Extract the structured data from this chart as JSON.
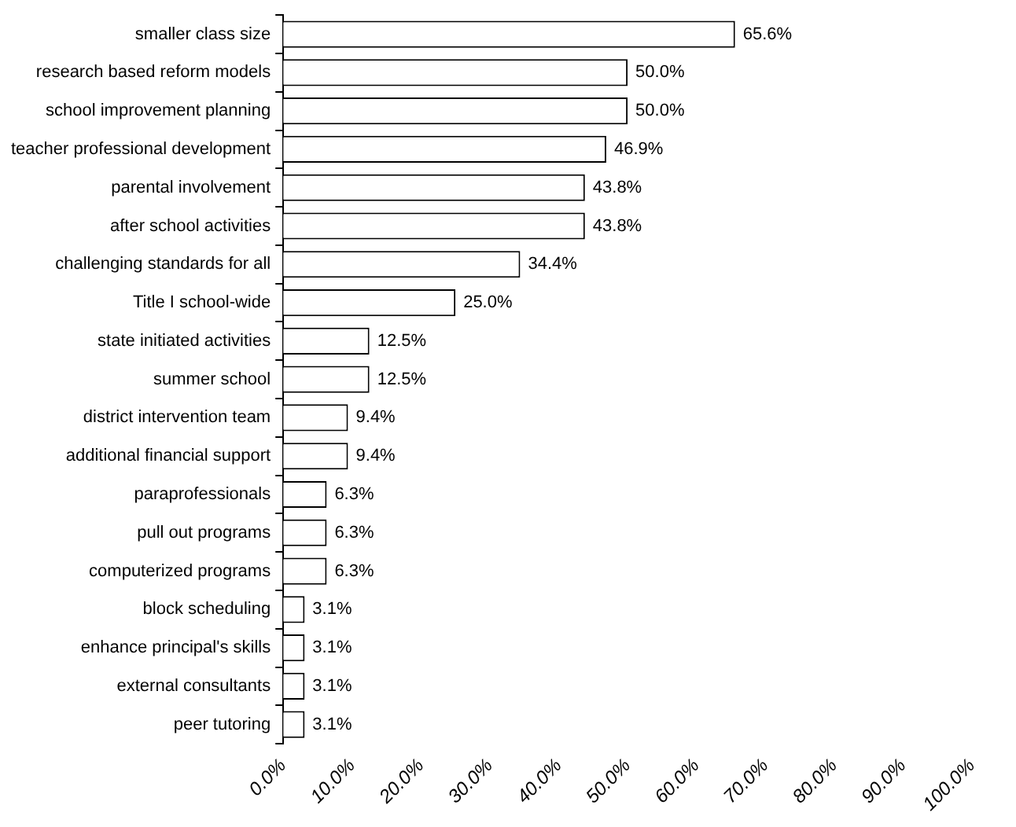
{
  "chart_data": {
    "type": "bar",
    "orientation": "horizontal",
    "categories": [
      "smaller class size",
      "research based reform models",
      "school improvement planning",
      "teacher professional development",
      "parental involvement",
      "after school activities",
      "challenging standards for all",
      "Title I school-wide",
      "state initiated activities",
      "summer school",
      "district intervention team",
      "additional financial support",
      "paraprofessionals",
      "pull out programs",
      "computerized programs",
      "block scheduling",
      "enhance principal's skills",
      "external consultants",
      "peer tutoring"
    ],
    "values": [
      65.6,
      50.0,
      50.0,
      46.9,
      43.8,
      43.8,
      34.4,
      25.0,
      12.5,
      12.5,
      9.4,
      9.4,
      6.3,
      6.3,
      6.3,
      3.1,
      3.1,
      3.1,
      3.1
    ],
    "value_labels": [
      "65.6%",
      "50.0%",
      "50.0%",
      "46.9%",
      "43.8%",
      "43.8%",
      "34.4%",
      "25.0%",
      "12.5%",
      "12.5%",
      "9.4%",
      "9.4%",
      "6.3%",
      "6.3%",
      "6.3%",
      "3.1%",
      "3.1%",
      "3.1%",
      "3.1%"
    ],
    "color": "#ffffff",
    "xlim": [
      0,
      100
    ],
    "xticks": [
      {
        "value": 0,
        "label": "0.0%"
      },
      {
        "value": 10,
        "label": "10.0%"
      },
      {
        "value": 20,
        "label": "20.0%"
      },
      {
        "value": 30,
        "label": "30.0%"
      },
      {
        "value": 40,
        "label": "40.0%"
      },
      {
        "value": 50,
        "label": "50.0%"
      },
      {
        "value": 60,
        "label": "60.0%"
      },
      {
        "value": 70,
        "label": "70.0%"
      },
      {
        "value": 80,
        "label": "80.0%"
      },
      {
        "value": 90,
        "label": "90.0%"
      },
      {
        "value": 100,
        "label": "100.0%"
      }
    ],
    "grid": false,
    "legend": false
  }
}
